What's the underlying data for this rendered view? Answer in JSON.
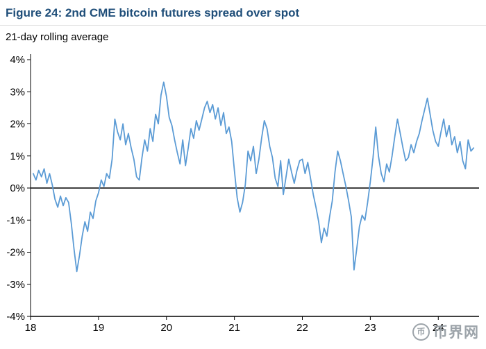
{
  "chart_data": {
    "type": "line",
    "title": "Figure 24: 2nd CME bitcoin futures spread over spot",
    "subtitle": "21-day rolling average",
    "xlabel": "",
    "ylabel": "",
    "xlim": [
      18.0,
      24.6
    ],
    "ylim": [
      -4,
      4
    ],
    "x_ticks": [
      18,
      19,
      20,
      21,
      22,
      23,
      24
    ],
    "y_ticks": [
      4,
      3,
      2,
      1,
      0,
      -1,
      -2,
      -3,
      -4
    ],
    "y_tick_labels": [
      "4%",
      "3%",
      "2%",
      "1%",
      "0%",
      "-1%",
      "-2%",
      "-3%",
      "-4%"
    ],
    "grid": false,
    "legend": "none",
    "zero_line": true,
    "line_color": "#5b9bd5",
    "axis_color": "#000000",
    "series": [
      {
        "name": "2nd CME bitcoin futures spread over spot (21-day rolling average, %)",
        "points": [
          [
            18.04,
            0.45
          ],
          [
            18.08,
            0.25
          ],
          [
            18.12,
            0.55
          ],
          [
            18.16,
            0.35
          ],
          [
            18.2,
            0.6
          ],
          [
            18.24,
            0.15
          ],
          [
            18.28,
            0.45
          ],
          [
            18.32,
            0.1
          ],
          [
            18.36,
            -0.35
          ],
          [
            18.4,
            -0.6
          ],
          [
            18.44,
            -0.25
          ],
          [
            18.48,
            -0.55
          ],
          [
            18.52,
            -0.3
          ],
          [
            18.56,
            -0.45
          ],
          [
            18.6,
            -1.1
          ],
          [
            18.64,
            -1.9
          ],
          [
            18.68,
            -2.6
          ],
          [
            18.72,
            -2.1
          ],
          [
            18.76,
            -1.5
          ],
          [
            18.8,
            -1.05
          ],
          [
            18.84,
            -1.35
          ],
          [
            18.88,
            -0.75
          ],
          [
            18.92,
            -0.95
          ],
          [
            18.96,
            -0.4
          ],
          [
            19.0,
            -0.15
          ],
          [
            19.04,
            0.25
          ],
          [
            19.08,
            0.05
          ],
          [
            19.12,
            0.45
          ],
          [
            19.16,
            0.3
          ],
          [
            19.2,
            0.9
          ],
          [
            19.24,
            2.15
          ],
          [
            19.28,
            1.75
          ],
          [
            19.32,
            1.5
          ],
          [
            19.36,
            2.0
          ],
          [
            19.4,
            1.35
          ],
          [
            19.44,
            1.7
          ],
          [
            19.48,
            1.25
          ],
          [
            19.52,
            0.9
          ],
          [
            19.56,
            0.35
          ],
          [
            19.6,
            0.25
          ],
          [
            19.64,
            0.95
          ],
          [
            19.68,
            1.5
          ],
          [
            19.72,
            1.15
          ],
          [
            19.76,
            1.85
          ],
          [
            19.8,
            1.45
          ],
          [
            19.84,
            2.3
          ],
          [
            19.88,
            2.0
          ],
          [
            19.92,
            2.9
          ],
          [
            19.96,
            3.3
          ],
          [
            20.0,
            2.85
          ],
          [
            20.04,
            2.2
          ],
          [
            20.08,
            1.95
          ],
          [
            20.12,
            1.5
          ],
          [
            20.16,
            1.1
          ],
          [
            20.2,
            0.75
          ],
          [
            20.24,
            1.5
          ],
          [
            20.28,
            0.7
          ],
          [
            20.32,
            1.25
          ],
          [
            20.36,
            1.85
          ],
          [
            20.4,
            1.55
          ],
          [
            20.44,
            2.1
          ],
          [
            20.48,
            1.8
          ],
          [
            20.52,
            2.15
          ],
          [
            20.56,
            2.5
          ],
          [
            20.6,
            2.7
          ],
          [
            20.64,
            2.35
          ],
          [
            20.68,
            2.6
          ],
          [
            20.72,
            2.15
          ],
          [
            20.76,
            2.5
          ],
          [
            20.8,
            1.95
          ],
          [
            20.84,
            2.35
          ],
          [
            20.88,
            1.7
          ],
          [
            20.92,
            1.9
          ],
          [
            20.96,
            1.45
          ],
          [
            21.0,
            0.55
          ],
          [
            21.04,
            -0.3
          ],
          [
            21.08,
            -0.75
          ],
          [
            21.12,
            -0.45
          ],
          [
            21.16,
            0.1
          ],
          [
            21.2,
            1.15
          ],
          [
            21.24,
            0.85
          ],
          [
            21.28,
            1.3
          ],
          [
            21.32,
            0.45
          ],
          [
            21.36,
            0.9
          ],
          [
            21.4,
            1.55
          ],
          [
            21.44,
            2.1
          ],
          [
            21.48,
            1.85
          ],
          [
            21.52,
            1.3
          ],
          [
            21.56,
            0.95
          ],
          [
            21.6,
            0.3
          ],
          [
            21.64,
            0.05
          ],
          [
            21.68,
            0.85
          ],
          [
            21.72,
            -0.2
          ],
          [
            21.76,
            0.35
          ],
          [
            21.8,
            0.9
          ],
          [
            21.84,
            0.5
          ],
          [
            21.88,
            0.15
          ],
          [
            21.92,
            0.55
          ],
          [
            21.96,
            0.85
          ],
          [
            22.0,
            0.9
          ],
          [
            22.04,
            0.45
          ],
          [
            22.08,
            0.8
          ],
          [
            22.12,
            0.3
          ],
          [
            22.16,
            -0.2
          ],
          [
            22.2,
            -0.6
          ],
          [
            22.24,
            -1.05
          ],
          [
            22.28,
            -1.7
          ],
          [
            22.32,
            -1.25
          ],
          [
            22.36,
            -1.5
          ],
          [
            22.4,
            -0.9
          ],
          [
            22.44,
            -0.4
          ],
          [
            22.48,
            0.5
          ],
          [
            22.52,
            1.15
          ],
          [
            22.56,
            0.85
          ],
          [
            22.6,
            0.45
          ],
          [
            22.64,
            0.05
          ],
          [
            22.68,
            -0.4
          ],
          [
            22.72,
            -0.9
          ],
          [
            22.76,
            -2.55
          ],
          [
            22.8,
            -1.9
          ],
          [
            22.84,
            -1.2
          ],
          [
            22.88,
            -0.85
          ],
          [
            22.92,
            -1.0
          ],
          [
            22.96,
            -0.45
          ],
          [
            23.0,
            0.2
          ],
          [
            23.04,
            0.95
          ],
          [
            23.08,
            1.9
          ],
          [
            23.12,
            1.0
          ],
          [
            23.16,
            0.45
          ],
          [
            23.2,
            0.2
          ],
          [
            23.24,
            0.75
          ],
          [
            23.28,
            0.5
          ],
          [
            23.32,
            1.0
          ],
          [
            23.36,
            1.6
          ],
          [
            23.4,
            2.15
          ],
          [
            23.44,
            1.7
          ],
          [
            23.48,
            1.25
          ],
          [
            23.52,
            0.85
          ],
          [
            23.56,
            0.95
          ],
          [
            23.6,
            1.35
          ],
          [
            23.64,
            1.1
          ],
          [
            23.68,
            1.45
          ],
          [
            23.72,
            1.7
          ],
          [
            23.76,
            2.1
          ],
          [
            23.8,
            2.45
          ],
          [
            23.84,
            2.8
          ],
          [
            23.88,
            2.3
          ],
          [
            23.92,
            1.8
          ],
          [
            23.96,
            1.45
          ],
          [
            24.0,
            1.3
          ],
          [
            24.04,
            1.75
          ],
          [
            24.08,
            2.15
          ],
          [
            24.12,
            1.6
          ],
          [
            24.16,
            1.95
          ],
          [
            24.2,
            1.35
          ],
          [
            24.24,
            1.6
          ],
          [
            24.28,
            1.1
          ],
          [
            24.32,
            1.45
          ],
          [
            24.36,
            0.85
          ],
          [
            24.4,
            0.6
          ],
          [
            24.44,
            1.5
          ],
          [
            24.48,
            1.15
          ],
          [
            24.52,
            1.25
          ]
        ]
      }
    ]
  },
  "watermark": {
    "icon_glyph": "币",
    "text": "币界网",
    "color": "#98a0a6"
  }
}
